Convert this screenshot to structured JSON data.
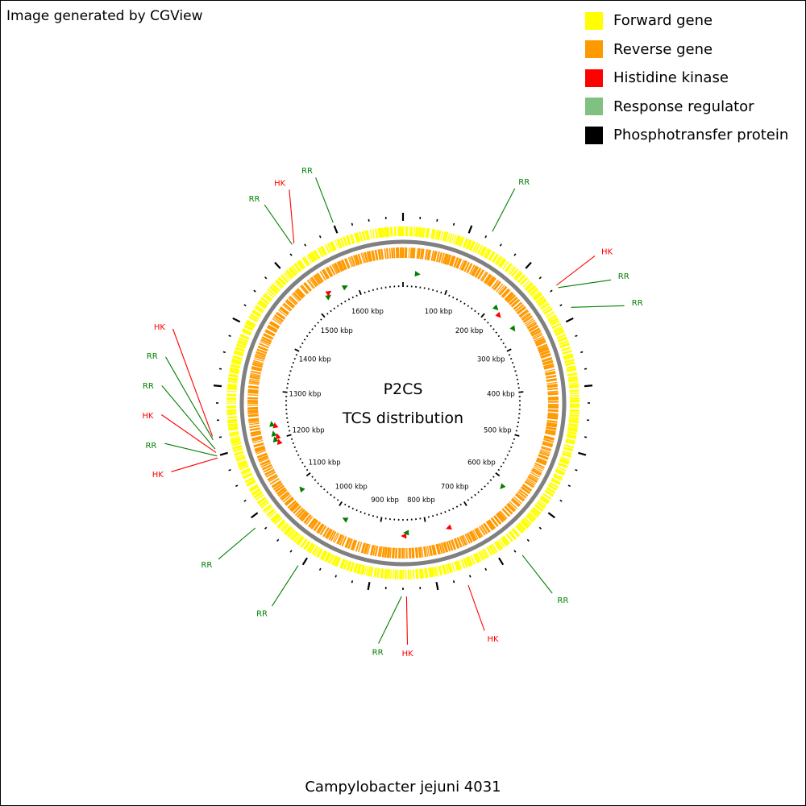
{
  "credit": "Image generated by CGView",
  "legend": [
    {
      "label": "Forward gene",
      "color": "#ffff00"
    },
    {
      "label": "Reverse gene",
      "color": "#ff9900"
    },
    {
      "label": "Histidine kinase",
      "color": "#ff0000"
    },
    {
      "label": "Response regulator",
      "color": "#80c080"
    },
    {
      "label": "Phosphotransfer protein",
      "color": "#000000"
    }
  ],
  "center": {
    "title": "P2CS",
    "subtitle": "TCS distribution"
  },
  "caption": "Campylobacter jejuni 4031",
  "genome_length_kbp": 1700,
  "ruler_ticks": [
    "100 kbp",
    "200 kbp",
    "300 kbp",
    "400 kbp",
    "500 kbp",
    "600 kbp",
    "700 kbp",
    "800 kbp",
    "900 kbp",
    "1000 kbp",
    "1100 kbp",
    "1200 kbp",
    "1300 kbp",
    "1400 kbp",
    "1500 kbp",
    "1600 kbp"
  ],
  "callouts": [
    {
      "label": "RR",
      "kind": "rr",
      "pos_kbp": 130
    },
    {
      "label": "HK",
      "kind": "hk",
      "pos_kbp": 248
    },
    {
      "label": "RR",
      "kind": "rr",
      "pos_kbp": 252
    },
    {
      "label": "RR",
      "kind": "rr",
      "pos_kbp": 285
    },
    {
      "label": "RR",
      "kind": "rr",
      "pos_kbp": 670
    },
    {
      "label": "HK",
      "kind": "hk",
      "pos_kbp": 757
    },
    {
      "label": "HK",
      "kind": "hk",
      "pos_kbp": 845
    },
    {
      "label": "RR",
      "kind": "rr",
      "pos_kbp": 852
    },
    {
      "label": "RR",
      "kind": "rr",
      "pos_kbp": 1005
    },
    {
      "label": "RR",
      "kind": "rr",
      "pos_kbp": 1085
    },
    {
      "label": "HK",
      "kind": "hk",
      "pos_kbp": 1197
    },
    {
      "label": "RR",
      "kind": "rr",
      "pos_kbp": 1200
    },
    {
      "label": "HK",
      "kind": "hk",
      "pos_kbp": 1205
    },
    {
      "label": "RR",
      "kind": "rr",
      "pos_kbp": 1210
    },
    {
      "label": "RR",
      "kind": "rr",
      "pos_kbp": 1223
    },
    {
      "label": "HK",
      "kind": "hk",
      "pos_kbp": 1228
    },
    {
      "label": "RR",
      "kind": "rr",
      "pos_kbp": 1535
    },
    {
      "label": "HK",
      "kind": "hk",
      "pos_kbp": 1538
    },
    {
      "label": "RR",
      "kind": "rr",
      "pos_kbp": 1600
    }
  ],
  "tcs_markers": [
    {
      "kind": "rr",
      "pos_kbp": 30
    },
    {
      "kind": "rr",
      "pos_kbp": 210
    },
    {
      "kind": "hk",
      "pos_kbp": 225
    },
    {
      "kind": "rr",
      "pos_kbp": 265
    },
    {
      "kind": "rr",
      "pos_kbp": 615
    },
    {
      "kind": "hk",
      "pos_kbp": 755
    },
    {
      "kind": "rr",
      "pos_kbp": 843
    },
    {
      "kind": "hk",
      "pos_kbp": 848
    },
    {
      "kind": "rr",
      "pos_kbp": 975
    },
    {
      "kind": "rr",
      "pos_kbp": 1085
    },
    {
      "kind": "hk",
      "pos_kbp": 1193
    },
    {
      "kind": "rr",
      "pos_kbp": 1200
    },
    {
      "kind": "hk",
      "pos_kbp": 1205
    },
    {
      "kind": "rr",
      "pos_kbp": 1212
    },
    {
      "kind": "hk",
      "pos_kbp": 1228
    },
    {
      "kind": "rr",
      "pos_kbp": 1232
    },
    {
      "kind": "rr",
      "pos_kbp": 1535
    },
    {
      "kind": "hk",
      "pos_kbp": 1540
    },
    {
      "kind": "rr",
      "pos_kbp": 1575
    }
  ],
  "colors": {
    "forward": "#ffff00",
    "reverse": "#ff9900",
    "hk": "#ff0000",
    "rr": "#008000",
    "backbone": "#808080",
    "ticks": "#000000"
  }
}
